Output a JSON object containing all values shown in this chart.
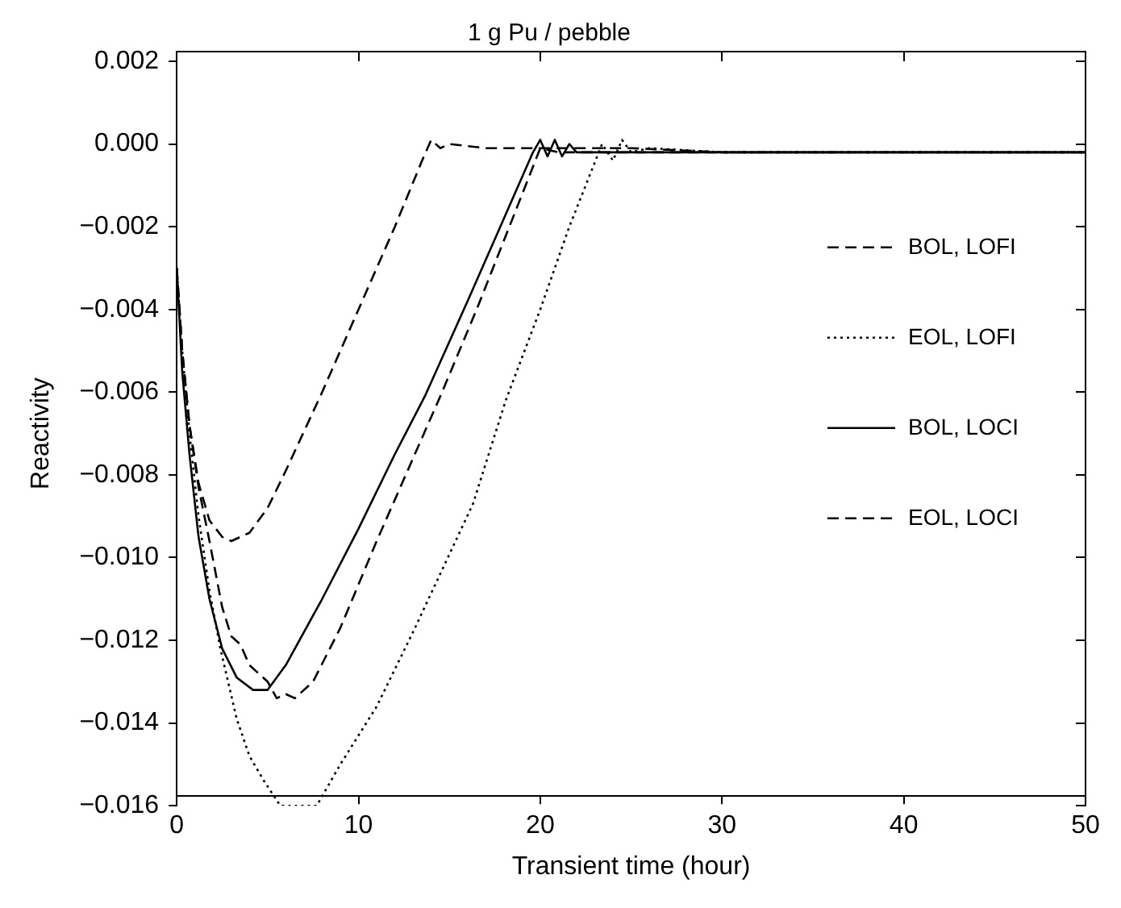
{
  "chart_data": {
    "type": "line",
    "title": "1 g Pu / pebble",
    "xlabel": "Transient time (hour)",
    "ylabel": "Reactivity",
    "xlim": [
      0,
      50
    ],
    "xticks": [
      0,
      10,
      20,
      30,
      40,
      50
    ],
    "ylim": [
      -0.016,
      0.002
    ],
    "yticks": [
      0.002,
      {
        "value": 0,
        "label": "0.000"
      },
      {
        "value": -0.002,
        "label": "−0.002"
      },
      {
        "value": -0.004,
        "label": "−0.004"
      },
      {
        "value": -0.006,
        "label": "−0.006"
      },
      {
        "value": -0.008,
        "label": "−0.008"
      },
      {
        "value": -0.01,
        "label": "−0.010"
      },
      {
        "value": -0.012,
        "label": "−0.012"
      },
      {
        "value": -0.014,
        "label": "−0.014"
      },
      {
        "value": -0.016,
        "label": "−0.016"
      }
    ],
    "grid": false,
    "legend": "right",
    "marker": "none",
    "series": [
      {
        "name": "BOL, LOFI",
        "color": "#000000",
        "line_style": "dashed",
        "x": [
          0,
          0.3,
          0.7,
          1.2,
          1.8,
          2.5,
          3,
          4,
          5,
          6,
          8,
          10,
          12,
          13.5,
          14,
          14.5,
          15,
          17,
          20,
          25,
          30,
          40,
          50
        ],
        "values": [
          -0.003,
          -0.005,
          -0.0068,
          -0.0082,
          -0.0091,
          -0.0095,
          -0.0096,
          -0.0094,
          -0.0088,
          -0.0079,
          -0.006,
          -0.004,
          -0.002,
          -0.0004,
          0.0001,
          -0.0001,
          0,
          -0.0001,
          -0.0001,
          -0.0001,
          -0.0002,
          -0.0002,
          -0.0002
        ]
      },
      {
        "name": "EOL, LOFI",
        "color": "#000000",
        "line_style": "dotted",
        "x": [
          0,
          0.3,
          0.7,
          1.2,
          1.8,
          2.4,
          3.3,
          4,
          4.8,
          5.7,
          7.7,
          9,
          11,
          13,
          16.3,
          18.1,
          20,
          21.6,
          23.4,
          24,
          24.5,
          25,
          26,
          30,
          50
        ],
        "values": [
          -0.003,
          -0.005,
          -0.007,
          -0.009,
          -0.0108,
          -0.0122,
          -0.0139,
          -0.0148,
          -0.0154,
          -0.016,
          -0.016,
          -0.015,
          -0.0136,
          -0.0118,
          -0.0087,
          -0.0062,
          -0.004,
          -0.002,
          0,
          -0.0004,
          0.0001,
          -0.0002,
          -0.0001,
          -0.0002,
          -0.0002
        ]
      },
      {
        "name": "BOL, LOCI",
        "color": "#000000",
        "line_style": "solid",
        "x": [
          0,
          0.3,
          0.7,
          1.2,
          1.8,
          2.5,
          3.3,
          4.2,
          5,
          6,
          8,
          10,
          12,
          13.65,
          16,
          17.8,
          19.6,
          20,
          20.4,
          20.8,
          21.2,
          21.6,
          22,
          25,
          50
        ],
        "values": [
          -0.003,
          -0.0055,
          -0.0075,
          -0.0095,
          -0.011,
          -0.0122,
          -0.0129,
          -0.0132,
          -0.0132,
          -0.0126,
          -0.011,
          -0.0093,
          -0.0075,
          -0.0061,
          -0.0038,
          -0.002,
          -0.0002,
          0.0001,
          -0.0003,
          0.0001,
          -0.0003,
          0,
          -0.0002,
          -0.0002,
          -0.0002
        ]
      },
      {
        "name": "EOL, LOCI",
        "color": "#000000",
        "line_style": "dashed",
        "x": [
          0,
          0.3,
          0.7,
          1.2,
          1.8,
          2.5,
          3,
          3.5,
          4,
          4.5,
          5,
          5.5,
          6,
          6.5,
          7.5,
          9,
          11,
          13,
          14.5,
          16.5,
          18.3,
          20,
          21,
          50
        ],
        "values": [
          -0.003,
          -0.005,
          -0.0068,
          -0.0083,
          -0.0096,
          -0.0112,
          -0.0119,
          -0.0121,
          -0.0126,
          -0.0128,
          -0.013,
          -0.0134,
          -0.0133,
          -0.0134,
          -0.013,
          -0.0117,
          -0.0096,
          -0.0076,
          -0.0061,
          -0.004,
          -0.002,
          -0.0001,
          -0.0002,
          -0.0002
        ]
      }
    ]
  }
}
